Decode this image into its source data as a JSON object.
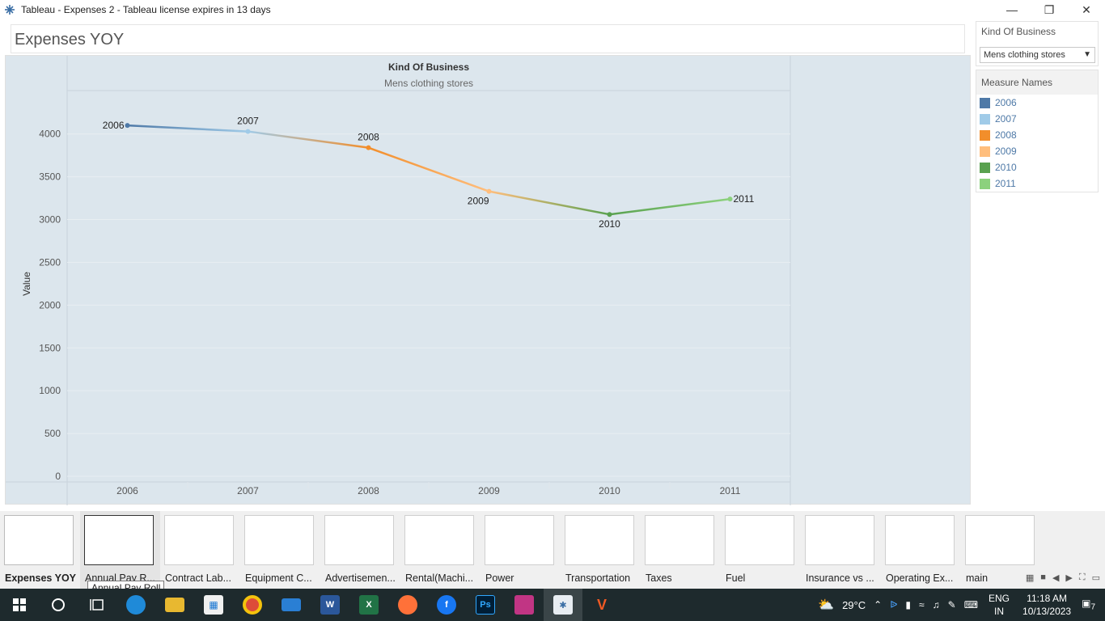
{
  "window": {
    "title": "Tableau - Expenses 2 - Tableau license expires in 13 days"
  },
  "sheet": {
    "title": "Expenses YOY"
  },
  "filter": {
    "title": "Kind Of Business",
    "selected": "Mens clothing stores"
  },
  "legend": {
    "title": "Measure Names",
    "items": [
      {
        "label": "2006",
        "color": "#4e79a7"
      },
      {
        "label": "2007",
        "color": "#a0cbe8"
      },
      {
        "label": "2008",
        "color": "#f28e2b"
      },
      {
        "label": "2009",
        "color": "#ffbe7d"
      },
      {
        "label": "2010",
        "color": "#59a14f"
      },
      {
        "label": "2011",
        "color": "#8cd17d"
      }
    ]
  },
  "chart_data": {
    "type": "line",
    "header_title": "Kind Of Business",
    "header_value": "Mens clothing stores",
    "ylabel": "Value",
    "xlabel": "",
    "categories": [
      "2006",
      "2007",
      "2008",
      "2009",
      "2010",
      "2011"
    ],
    "values": [
      4100,
      4030,
      3840,
      3330,
      3060,
      3240
    ],
    "point_labels": [
      "2006",
      "2007",
      "2008",
      "2009",
      "2010",
      "2011"
    ],
    "colors": [
      "#4e79a7",
      "#a0cbe8",
      "#f28e2b",
      "#ffbe7d",
      "#59a14f",
      "#8cd17d"
    ],
    "ylim": [
      0,
      4300
    ],
    "yticks": [
      0,
      500,
      1000,
      1500,
      2000,
      2500,
      3000,
      3500,
      4000
    ],
    "grid": true
  },
  "filmstrip": {
    "tooltip": "Annual Pay Roll",
    "tabs": [
      {
        "label": "Expenses YOY"
      },
      {
        "label": "Annual Pay R..."
      },
      {
        "label": "Contract Lab..."
      },
      {
        "label": "Equipment C..."
      },
      {
        "label": "Advertisemen..."
      },
      {
        "label": "Rental(Machi..."
      },
      {
        "label": "Power"
      },
      {
        "label": "Transportation"
      },
      {
        "label": "Taxes"
      },
      {
        "label": "Fuel"
      },
      {
        "label": "Insurance vs ..."
      },
      {
        "label": "Operating Ex..."
      },
      {
        "label": "main"
      }
    ]
  },
  "taskbar": {
    "weather": "29°C",
    "lang": "ENG",
    "region": "IN",
    "time": "11:18 AM",
    "date": "10/13/2023",
    "notifications": "7"
  }
}
